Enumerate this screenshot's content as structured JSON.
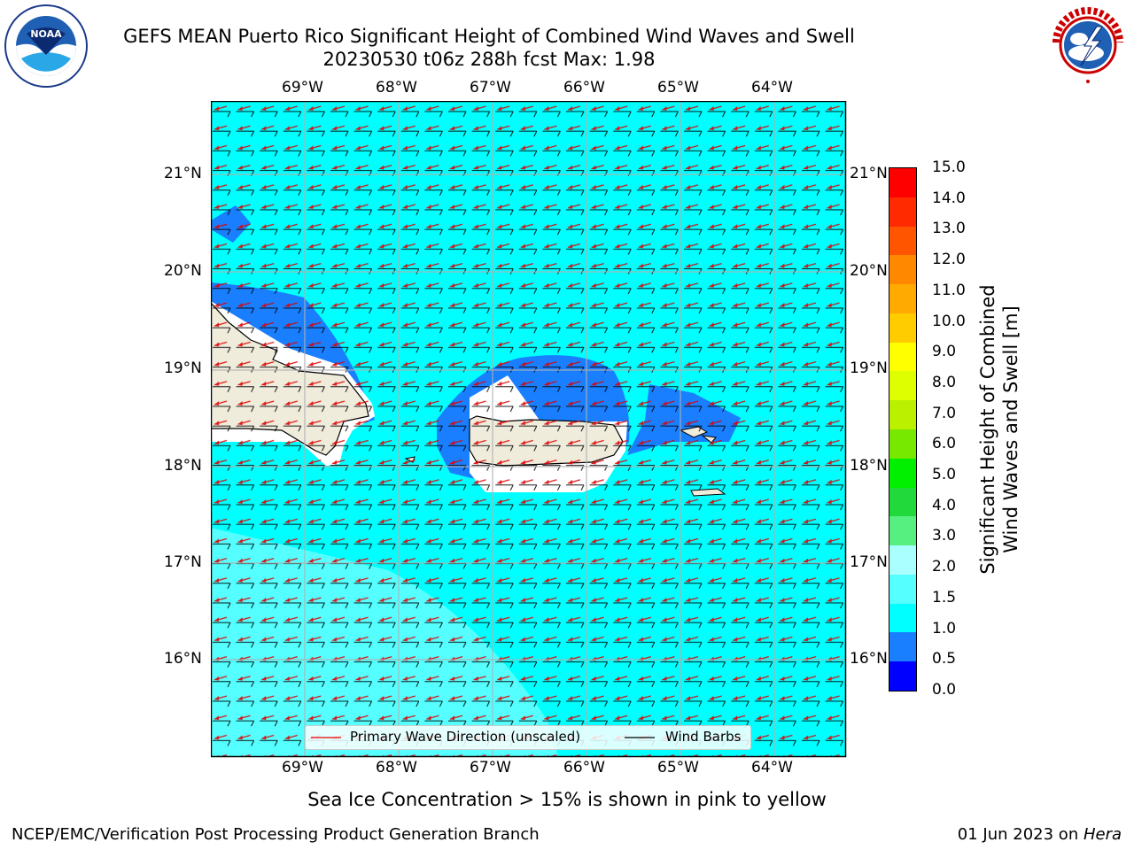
{
  "header": {
    "title_line1": "GEFS MEAN Puerto Rico Significant Height of Combined Wind Waves and Swell",
    "title_line2": "20230530 t06z 288h fcst   Max: 1.98"
  },
  "logos": {
    "left": "noaa-logo",
    "right": "nws-logo"
  },
  "map": {
    "lon_labels": [
      "69°W",
      "68°W",
      "67°W",
      "66°W",
      "65°W",
      "64°W"
    ],
    "lat_labels": [
      "21°N",
      "20°N",
      "19°N",
      "18°N",
      "17°N",
      "16°N"
    ],
    "colors": {
      "ocean_main": "#00ffff",
      "ocean_light": "#55ffff",
      "low_wave": "#1a7fff",
      "land": "#efecdc"
    },
    "legend": {
      "wave_dir_label": "Primary Wave Direction (unscaled)",
      "wind_barb_label": "Wind Barbs"
    }
  },
  "colorbar": {
    "title_line1": "Significant Height of Combined",
    "title_line2": "Wind Waves and Swell [m]",
    "ticks": [
      "15.0",
      "14.0",
      "13.0",
      "12.0",
      "11.0",
      "10.0",
      "9.0",
      "8.0",
      "7.0",
      "6.0",
      "5.0",
      "4.0",
      "3.0",
      "2.0",
      "1.5",
      "1.0",
      "0.5",
      "0.0"
    ],
    "colors_bottom_to_top": [
      "#0000ff",
      "#1a7fff",
      "#00ffff",
      "#55ffff",
      "#aaffff",
      "#55f07f",
      "#22d93c",
      "#00f000",
      "#77e800",
      "#bbf000",
      "#ddff00",
      "#ffff00",
      "#ffcc00",
      "#ffaa00",
      "#ff8800",
      "#ff5500",
      "#ff2a00",
      "#ff0000"
    ]
  },
  "footer": {
    "subnote": "Sea Ice Concentration > 15% is shown in pink to yellow",
    "left": "NCEP/EMC/Verification Post Processing Product Generation Branch",
    "right_date": "01 Jun 2023 on ",
    "right_host": "Hera"
  }
}
